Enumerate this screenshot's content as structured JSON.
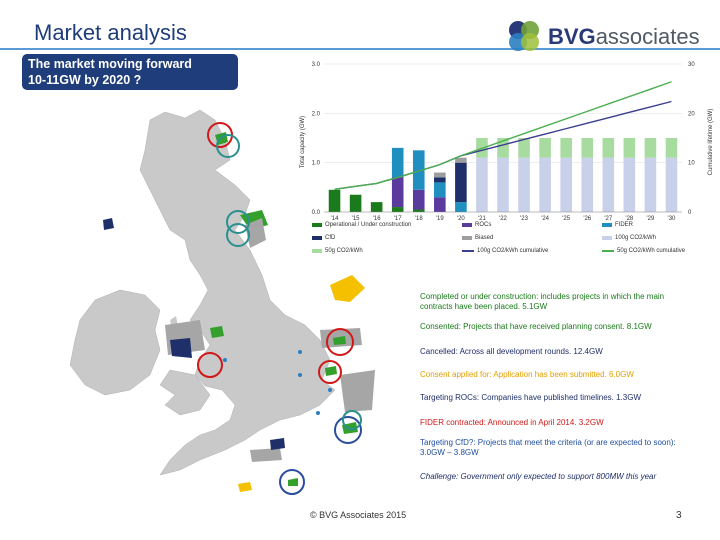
{
  "title": "Market analysis",
  "subtitle_lines": [
    "The market moving forward",
    "10-11GW by 2020 ?"
  ],
  "logo": {
    "text_bold": "BVG",
    "text_light": "associates"
  },
  "chart_data": {
    "type": "bar",
    "title": "",
    "ylabel_left": "Total capacity (GW)",
    "ylabel_right": "Cumulative lifetime (GW)",
    "ylim_left": [
      0,
      3.0
    ],
    "ylim_right": [
      0,
      30
    ],
    "yticks_left": [
      "0.0",
      "1.0",
      "2.0",
      "3.0"
    ],
    "yticks_right": [
      "0",
      "10",
      "20",
      "30"
    ],
    "categories": [
      "'14",
      "'15",
      "'16",
      "'17",
      "'18",
      "'19",
      "'20",
      "'21",
      "'22",
      "'23",
      "'24",
      "'25",
      "'26",
      "'27",
      "'28",
      "'29",
      "'30"
    ],
    "series": [
      {
        "name": "Operational / Under construction",
        "color": "#1b7a1b",
        "values": [
          0.45,
          0.35,
          0.2,
          0.1,
          0.05,
          0,
          0,
          0,
          0,
          0,
          0,
          0,
          0,
          0,
          0,
          0,
          0
        ]
      },
      {
        "name": "ROCs",
        "color": "#5b3a9e",
        "values": [
          0,
          0,
          0,
          0.6,
          0.4,
          0.3,
          0,
          0,
          0,
          0,
          0,
          0,
          0,
          0,
          0,
          0,
          0
        ]
      },
      {
        "name": "FIDER",
        "color": "#1f8fbf",
        "values": [
          0,
          0,
          0,
          0.6,
          0.8,
          0.3,
          0.2,
          0,
          0,
          0,
          0,
          0,
          0,
          0,
          0,
          0,
          0
        ]
      },
      {
        "name": "CfD",
        "color": "#1f2f6a",
        "values": [
          0,
          0,
          0,
          0,
          0,
          0.1,
          0.8,
          0,
          0,
          0,
          0,
          0,
          0,
          0,
          0,
          0,
          0
        ]
      },
      {
        "name": "Biased",
        "color": "#9e9e9e",
        "values": [
          0,
          0,
          0,
          0,
          0,
          0.1,
          0.1,
          0,
          0,
          0,
          0,
          0,
          0,
          0,
          0,
          0,
          0
        ]
      },
      {
        "name": "100g CO2/kWh",
        "color": "#c9d0ea",
        "values": [
          0,
          0,
          0,
          0,
          0,
          0,
          0,
          1.1,
          1.1,
          1.1,
          1.1,
          1.1,
          1.1,
          1.1,
          1.1,
          1.1,
          1.1
        ]
      },
      {
        "name": "50g CO2/kWh",
        "color": "#a8dba0",
        "values": [
          0,
          0,
          0,
          0,
          0,
          0,
          0,
          0.4,
          0.4,
          0.4,
          0.4,
          0.4,
          0.4,
          0.4,
          0.4,
          0.4,
          0.4
        ]
      }
    ],
    "lines": [
      {
        "name": "100g CO2/kWh cumulative",
        "color": "#3c3f8f",
        "values": [
          4.6,
          5.2,
          5.8,
          7.0,
          8.3,
          9.6,
          11.4,
          12.5,
          13.6,
          14.7,
          15.8,
          16.9,
          18.0,
          19.1,
          20.2,
          21.3,
          22.4
        ]
      },
      {
        "name": "50g CO2/kWh cumulative",
        "color": "#4caf50",
        "values": [
          4.6,
          5.2,
          5.8,
          7.0,
          8.3,
          9.6,
          11.4,
          12.9,
          14.4,
          15.9,
          17.4,
          18.9,
          20.4,
          21.9,
          23.4,
          24.9,
          26.4
        ]
      }
    ],
    "legend": [
      {
        "label": "Operational / Under construction",
        "color": "#1b7a1b",
        "kind": "bar"
      },
      {
        "label": "ROCs",
        "color": "#5b3a9e",
        "kind": "bar"
      },
      {
        "label": "FIDER",
        "color": "#1f8fbf",
        "kind": "bar"
      },
      {
        "label": "CfD",
        "color": "#1f2f6a",
        "kind": "bar"
      },
      {
        "label": "Biased",
        "color": "#9e9e9e",
        "kind": "bar"
      },
      {
        "label": "100g CO2/kWh",
        "color": "#c9d0ea",
        "kind": "bar"
      },
      {
        "label": "50g CO2/kWh",
        "color": "#a8dba0",
        "kind": "bar"
      },
      {
        "label": "100g CO2/kWh cumulative",
        "color": "#3c3f8f",
        "kind": "line"
      },
      {
        "label": "50g CO2/kWh cumulative",
        "color": "#4caf50",
        "kind": "line"
      }
    ]
  },
  "annotations": [
    {
      "text": "Completed or under construction: includes projects in which the main contracts have been placed. 5.1GW",
      "color": "#1a7a1a"
    },
    {
      "text": "Consented: Projects that have received planning consent. 8.1GW",
      "color": "#1a7a1a"
    },
    {
      "text": "Cancelled: Across all development rounds. 12.4GW",
      "color": "#1f2f6a"
    },
    {
      "text": "Consent applied for: Application has been submitted. 6.0GW",
      "color": "#e0a000"
    },
    {
      "text": "Targeting ROCs: Companies have published timelines. 1.3GW",
      "color": "#1f2f6a"
    },
    {
      "text": "FIDER contracted: Announced in April 2014. 3.2GW",
      "color": "#d01818"
    },
    {
      "text": "Targeting CfD?: Projects that meet the criteria (or are expected to soon): 3.0GW – 3.8GW",
      "color": "#1f4fa0"
    },
    {
      "text": "Challenge: Government only expected to support 800MW this year",
      "color": "#1f2f6a"
    }
  ],
  "footer": "© BVG Associates 2015",
  "page_number": "3",
  "colors": {
    "title": "#1f3d7a",
    "rule": "#5a9bd5",
    "land": "#c9c9c9",
    "sea": "#ffffff",
    "site_green": "#33a02c",
    "site_navy": "#1f2f6a",
    "site_yellow": "#f5c000",
    "site_grey": "#a6a6a6",
    "ring_red": "#d01818",
    "ring_teal": "#2a8f8f",
    "ring_blue": "#2b4c9f"
  }
}
